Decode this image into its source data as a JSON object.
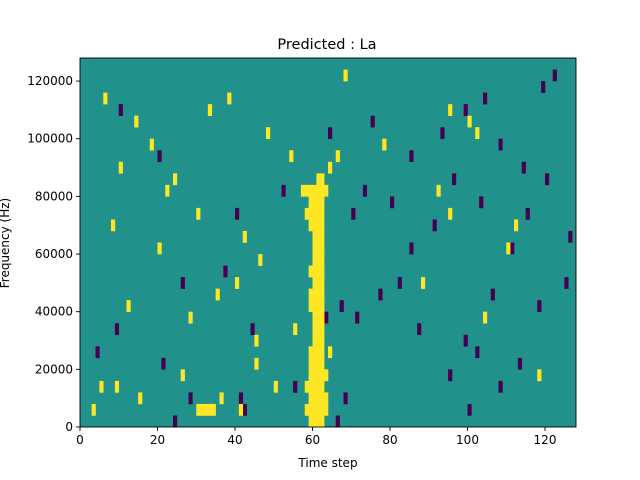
{
  "chart_data": {
    "type": "heatmap",
    "title": "Predicted : La",
    "xlabel": "Time step",
    "ylabel": "Frequency (Hz)",
    "xlim": [
      0,
      128
    ],
    "ylim": [
      0,
      128000
    ],
    "xticks": [
      0,
      20,
      40,
      60,
      80,
      100,
      120
    ],
    "yticks": [
      0,
      20000,
      40000,
      60000,
      80000,
      100000,
      120000
    ],
    "ytick_labels": [
      "0",
      "20000",
      "40000",
      "60000",
      "80000",
      "100000",
      "120000"
    ],
    "grid": false,
    "legend": "none",
    "bin_width_time": 1,
    "bin_height_hz": 4000,
    "colors": {
      "background": "#21918c",
      "high": "#fde725",
      "low": "#440154"
    },
    "high_cells": [
      [
        59,
        0
      ],
      [
        60,
        0
      ],
      [
        61,
        0
      ],
      [
        62,
        0
      ],
      [
        30,
        1
      ],
      [
        31,
        1
      ],
      [
        32,
        1
      ],
      [
        33,
        1
      ],
      [
        34,
        1
      ],
      [
        58,
        1
      ],
      [
        59,
        1
      ],
      [
        60,
        1
      ],
      [
        61,
        1
      ],
      [
        62,
        1
      ],
      [
        63,
        1
      ],
      [
        59,
        2
      ],
      [
        60,
        2
      ],
      [
        61,
        2
      ],
      [
        62,
        2
      ],
      [
        63,
        2
      ],
      [
        58,
        3
      ],
      [
        59,
        3
      ],
      [
        60,
        3
      ],
      [
        61,
        3
      ],
      [
        62,
        3
      ],
      [
        59,
        4
      ],
      [
        60,
        4
      ],
      [
        61,
        4
      ],
      [
        62,
        4
      ],
      [
        63,
        4
      ],
      [
        59,
        5
      ],
      [
        60,
        5
      ],
      [
        61,
        5
      ],
      [
        62,
        5
      ],
      [
        59,
        6
      ],
      [
        60,
        6
      ],
      [
        61,
        6
      ],
      [
        62,
        6
      ],
      [
        60,
        7
      ],
      [
        61,
        7
      ],
      [
        62,
        7
      ],
      [
        60,
        8
      ],
      [
        61,
        8
      ],
      [
        62,
        8
      ],
      [
        60,
        9
      ],
      [
        61,
        9
      ],
      [
        62,
        9
      ],
      [
        59,
        10
      ],
      [
        60,
        10
      ],
      [
        61,
        10
      ],
      [
        62,
        10
      ],
      [
        59,
        11
      ],
      [
        60,
        11
      ],
      [
        61,
        11
      ],
      [
        62,
        11
      ],
      [
        60,
        12
      ],
      [
        61,
        12
      ],
      [
        62,
        12
      ],
      [
        59,
        13
      ],
      [
        60,
        13
      ],
      [
        61,
        13
      ],
      [
        62,
        13
      ],
      [
        60,
        14
      ],
      [
        61,
        14
      ],
      [
        62,
        14
      ],
      [
        60,
        15
      ],
      [
        61,
        15
      ],
      [
        62,
        15
      ],
      [
        60,
        16
      ],
      [
        61,
        16
      ],
      [
        62,
        16
      ],
      [
        59,
        17
      ],
      [
        60,
        17
      ],
      [
        61,
        17
      ],
      [
        62,
        17
      ],
      [
        58,
        18
      ],
      [
        59,
        18
      ],
      [
        60,
        18
      ],
      [
        61,
        18
      ],
      [
        62,
        18
      ],
      [
        59,
        19
      ],
      [
        60,
        19
      ],
      [
        61,
        19
      ],
      [
        62,
        19
      ],
      [
        57,
        20
      ],
      [
        58,
        20
      ],
      [
        59,
        20
      ],
      [
        60,
        20
      ],
      [
        61,
        20
      ],
      [
        62,
        20
      ],
      [
        63,
        20
      ],
      [
        61,
        21
      ],
      [
        62,
        21
      ],
      [
        64,
        22
      ],
      [
        66,
        23
      ],
      [
        3,
        1
      ],
      [
        5,
        3
      ],
      [
        9,
        3
      ],
      [
        15,
        2
      ],
      [
        26,
        4
      ],
      [
        36,
        2
      ],
      [
        41,
        1
      ],
      [
        45,
        5
      ],
      [
        50,
        3
      ],
      [
        8,
        17
      ],
      [
        20,
        15
      ],
      [
        35,
        11
      ],
      [
        46,
        14
      ],
      [
        95,
        27
      ],
      [
        102,
        25
      ],
      [
        12,
        10
      ],
      [
        18,
        24
      ],
      [
        24,
        21
      ],
      [
        28,
        9
      ],
      [
        33,
        27
      ],
      [
        40,
        12
      ],
      [
        45,
        7
      ],
      [
        55,
        8
      ],
      [
        64,
        6
      ],
      [
        88,
        12
      ],
      [
        95,
        18
      ],
      [
        104,
        9
      ],
      [
        110,
        15
      ],
      [
        118,
        4
      ],
      [
        6,
        28
      ],
      [
        10,
        22
      ],
      [
        14,
        26
      ],
      [
        22,
        20
      ],
      [
        30,
        18
      ],
      [
        38,
        28
      ],
      [
        42,
        16
      ],
      [
        48,
        25
      ],
      [
        54,
        23
      ],
      [
        68,
        30
      ],
      [
        78,
        24
      ],
      [
        92,
        20
      ],
      [
        100,
        26
      ],
      [
        112,
        17
      ]
    ],
    "low_cells": [
      [
        24,
        0
      ],
      [
        42,
        1
      ],
      [
        28,
        2
      ],
      [
        41,
        2
      ],
      [
        55,
        3
      ],
      [
        66,
        0
      ],
      [
        68,
        2
      ],
      [
        100,
        1
      ],
      [
        108,
        3
      ],
      [
        4,
        6
      ],
      [
        9,
        8
      ],
      [
        21,
        5
      ],
      [
        26,
        12
      ],
      [
        37,
        13
      ],
      [
        44,
        8
      ],
      [
        63,
        9
      ],
      [
        67,
        10
      ],
      [
        71,
        9
      ],
      [
        77,
        11
      ],
      [
        82,
        12
      ],
      [
        87,
        8
      ],
      [
        95,
        4
      ],
      [
        99,
        7
      ],
      [
        102,
        6
      ],
      [
        106,
        11
      ],
      [
        113,
        5
      ],
      [
        118,
        10
      ],
      [
        125,
        12
      ],
      [
        70,
        18
      ],
      [
        73,
        20
      ],
      [
        80,
        19
      ],
      [
        85,
        15
      ],
      [
        91,
        17
      ],
      [
        96,
        21
      ],
      [
        103,
        19
      ],
      [
        111,
        15
      ],
      [
        115,
        18
      ],
      [
        120,
        21
      ],
      [
        126,
        16
      ],
      [
        64,
        25
      ],
      [
        75,
        26
      ],
      [
        85,
        23
      ],
      [
        93,
        25
      ],
      [
        99,
        27
      ],
      [
        104,
        28
      ],
      [
        108,
        24
      ],
      [
        114,
        22
      ],
      [
        119,
        29
      ],
      [
        122,
        30
      ],
      [
        10,
        27
      ],
      [
        20,
        23
      ],
      [
        40,
        18
      ],
      [
        52,
        20
      ]
    ]
  }
}
